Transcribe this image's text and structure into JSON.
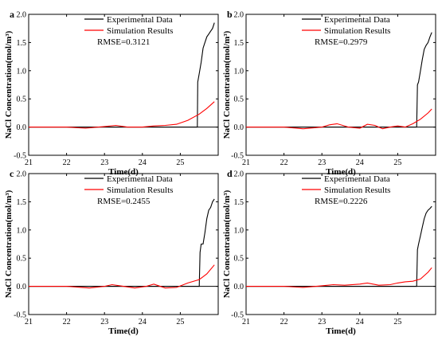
{
  "figure": {
    "shared_ylabel": "NaCl Concentration(mol/m³)",
    "shared_xlabel": "Time(d)",
    "legend": {
      "experimental": "Experimental Data",
      "simulation": "Simulation Results"
    }
  },
  "colors": {
    "experimental": "#000000",
    "simulation": "#ff0000",
    "zero_line": "#000000",
    "axes": "#000000"
  },
  "chart_data": [
    {
      "type": "line",
      "panel": "a",
      "rmse": "RMSE=0.3121",
      "xlabel": "",
      "ylabel": "NaCl Concentration(mol/m³)",
      "xlim": [
        21,
        26
      ],
      "ylim": [
        -0.5,
        2.0
      ],
      "x_ticks": [
        21,
        22,
        23,
        24,
        25
      ],
      "y_ticks": [
        -0.5,
        0.0,
        0.5,
        1.0,
        1.5,
        2.0
      ],
      "legend_position": "top-center",
      "series": [
        {
          "name": "Experimental Data",
          "color": "#000000",
          "x": [
            21.0,
            22.0,
            23.0,
            24.0,
            25.0,
            25.45,
            25.46,
            25.5,
            25.55,
            25.6,
            25.65,
            25.7,
            25.75,
            25.8,
            25.85,
            25.9
          ],
          "y": [
            0.0,
            0.0,
            0.0,
            0.0,
            0.0,
            0.0,
            0.8,
            0.95,
            1.15,
            1.4,
            1.5,
            1.6,
            1.65,
            1.7,
            1.75,
            1.85
          ]
        },
        {
          "name": "Simulation Results",
          "color": "#ff0000",
          "x": [
            21.0,
            22.0,
            22.5,
            23.0,
            23.3,
            23.6,
            24.0,
            24.3,
            24.6,
            24.9,
            25.2,
            25.5,
            25.7,
            25.9
          ],
          "y": [
            0.0,
            0.0,
            -0.02,
            0.01,
            0.03,
            0.0,
            0.0,
            0.02,
            0.03,
            0.05,
            0.12,
            0.23,
            0.33,
            0.45
          ]
        }
      ]
    },
    {
      "type": "line",
      "panel": "b",
      "rmse": "RMSE=0.2979",
      "xlabel": "",
      "ylabel": "",
      "xlim": [
        21,
        26
      ],
      "ylim": [
        -0.5,
        2.0
      ],
      "x_ticks": [
        21,
        22,
        23,
        24,
        25
      ],
      "y_ticks": [
        -0.5,
        0.0,
        0.5,
        1.0,
        1.5,
        2.0
      ],
      "legend_position": "top-center",
      "series": [
        {
          "name": "Experimental Data",
          "color": "#000000",
          "x": [
            21.0,
            22.0,
            23.0,
            24.0,
            25.0,
            25.5,
            25.52,
            25.55,
            25.6,
            25.65,
            25.7,
            25.75,
            25.8,
            25.85,
            25.9
          ],
          "y": [
            0.0,
            0.0,
            0.0,
            0.0,
            0.0,
            0.0,
            0.75,
            0.8,
            1.0,
            1.2,
            1.38,
            1.45,
            1.5,
            1.6,
            1.68
          ]
        },
        {
          "name": "Simulation Results",
          "color": "#ff0000",
          "x": [
            21.0,
            22.0,
            22.5,
            23.0,
            23.2,
            23.4,
            23.7,
            24.0,
            24.2,
            24.4,
            24.6,
            24.8,
            25.0,
            25.2,
            25.4,
            25.6,
            25.8,
            25.9
          ],
          "y": [
            0.0,
            0.0,
            -0.03,
            0.0,
            0.04,
            0.06,
            0.0,
            -0.02,
            0.05,
            0.03,
            -0.03,
            0.0,
            0.02,
            0.0,
            0.06,
            0.14,
            0.25,
            0.32
          ]
        }
      ]
    },
    {
      "type": "line",
      "panel": "c",
      "rmse": "RMSE=0.2455",
      "xlabel": "Time(d)",
      "ylabel": "NaCl Concentration(mol/m³)",
      "xlim": [
        21,
        26
      ],
      "ylim": [
        -0.5,
        2.0
      ],
      "x_ticks": [
        21,
        22,
        23,
        24,
        25
      ],
      "y_ticks": [
        -0.5,
        0.0,
        0.5,
        1.0,
        1.5,
        2.0
      ],
      "legend_position": "top-center",
      "series": [
        {
          "name": "Experimental Data",
          "color": "#000000",
          "x": [
            21.0,
            22.0,
            23.0,
            24.0,
            25.0,
            25.5,
            25.52,
            25.55,
            25.6,
            25.65,
            25.7,
            25.75,
            25.8,
            25.85,
            25.9
          ],
          "y": [
            0.0,
            0.0,
            0.0,
            0.0,
            0.0,
            0.0,
            0.6,
            0.75,
            0.75,
            0.95,
            1.2,
            1.35,
            1.4,
            1.5,
            1.55
          ]
        },
        {
          "name": "Simulation Results",
          "color": "#ff0000",
          "x": [
            21.0,
            22.0,
            22.6,
            23.0,
            23.2,
            23.5,
            23.8,
            24.1,
            24.3,
            24.6,
            24.9,
            25.2,
            25.5,
            25.7,
            25.9
          ],
          "y": [
            0.0,
            0.0,
            -0.03,
            0.0,
            0.03,
            0.0,
            -0.03,
            0.0,
            0.04,
            -0.03,
            -0.02,
            0.06,
            0.12,
            0.22,
            0.38
          ]
        }
      ]
    },
    {
      "type": "line",
      "panel": "d",
      "rmse": "RMSE=0.2226",
      "xlabel": "Time(d)",
      "ylabel": "NaCl Concentration(mol/m³)",
      "xlim": [
        21,
        26
      ],
      "ylim": [
        -0.5,
        2.0
      ],
      "x_ticks": [
        21,
        22,
        23,
        24,
        25
      ],
      "y_ticks": [
        -0.5,
        0.0,
        0.5,
        1.0,
        1.5,
        2.0
      ],
      "legend_position": "top-center",
      "series": [
        {
          "name": "Experimental Data",
          "color": "#000000",
          "x": [
            21.0,
            22.0,
            23.0,
            24.0,
            25.0,
            25.5,
            25.52,
            25.55,
            25.6,
            25.65,
            25.7,
            25.75,
            25.8,
            25.85,
            25.9
          ],
          "y": [
            0.0,
            0.0,
            0.0,
            0.0,
            0.0,
            0.0,
            0.65,
            0.75,
            0.9,
            1.05,
            1.2,
            1.3,
            1.35,
            1.38,
            1.42
          ]
        },
        {
          "name": "Simulation Results",
          "color": "#ff0000",
          "x": [
            21.0,
            22.0,
            22.5,
            23.0,
            23.3,
            23.6,
            24.0,
            24.2,
            24.5,
            24.8,
            25.0,
            25.2,
            25.4,
            25.6,
            25.8,
            25.9
          ],
          "y": [
            0.0,
            0.0,
            -0.02,
            0.01,
            0.03,
            0.02,
            0.04,
            0.06,
            0.02,
            0.03,
            0.06,
            0.08,
            0.09,
            0.13,
            0.25,
            0.33
          ]
        }
      ]
    }
  ]
}
